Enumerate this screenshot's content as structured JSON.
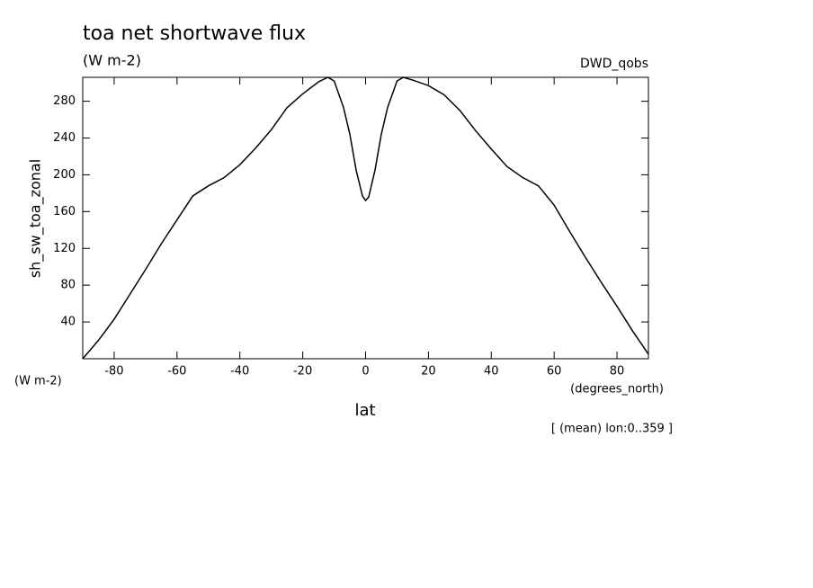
{
  "chart_data": {
    "type": "line",
    "title": "toa net shortwave flux",
    "subtitle": "(W m-2)",
    "dataset": "DWD_qobs",
    "y_label": "sh_sw_toa_zonal",
    "y_units": "(W m-2)",
    "x_units": "(degrees_north)",
    "x_label": "lat",
    "annotation": "[ (mean) lon:0..359 ]",
    "x": [
      -90,
      -85,
      -80,
      -75,
      -70,
      -65,
      -60,
      -55,
      -50,
      -45,
      -40,
      -35,
      -30,
      -25,
      -20,
      -15,
      -12,
      -10,
      -7,
      -5,
      -3,
      -1,
      0,
      1,
      3,
      5,
      7,
      10,
      12,
      15,
      20,
      25,
      30,
      35,
      40,
      45,
      50,
      55,
      60,
      65,
      70,
      75,
      80,
      85,
      90
    ],
    "series": [
      {
        "name": "sh_sw_toa_zonal",
        "color": "#000000",
        "values": [
          0,
          20,
          43,
          70,
          97,
          125,
          151,
          177,
          188,
          197,
          211,
          229,
          249,
          273,
          288,
          301,
          306,
          302,
          273,
          244,
          205,
          177,
          172,
          176,
          205,
          244,
          273,
          302,
          306,
          303,
          297,
          287,
          270,
          248,
          228,
          209,
          197,
          188,
          167,
          138,
          110,
          83,
          57,
          30,
          5
        ]
      }
    ],
    "xlim": [
      -90,
      90
    ],
    "ylim": [
      0,
      306
    ],
    "xticks": [
      -80,
      -60,
      -40,
      -20,
      0,
      20,
      40,
      60,
      80
    ],
    "yticks": [
      40,
      80,
      120,
      160,
      200,
      240,
      280
    ]
  }
}
